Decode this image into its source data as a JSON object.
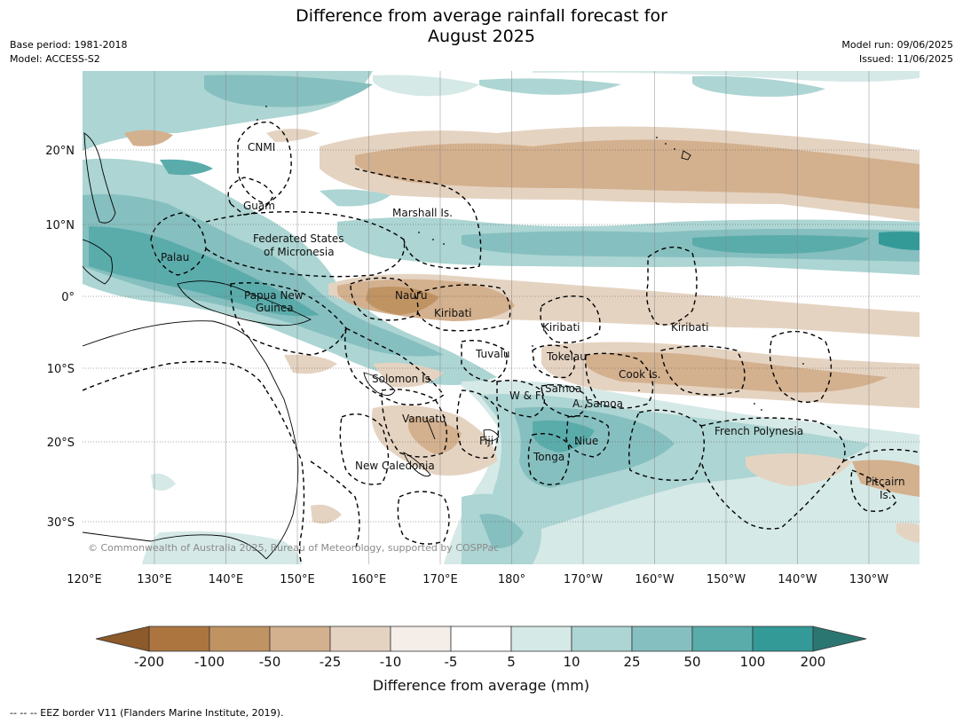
{
  "title_line1": "Difference from average rainfall forecast for",
  "title_line2": "August 2025",
  "base_period": "Base period: 1981-2018",
  "model": "Model: ACCESS-S2",
  "model_run": "Model run: 09/06/2025",
  "issued": "Issued: 11/06/2025",
  "copyright": "© Commonwealth of Australia 2025, Bureau of Meteorology, supported by COSPPac",
  "lon_ticks": [
    "120°E",
    "130°E",
    "140°E",
    "150°E",
    "160°E",
    "170°E",
    "180°",
    "170°W",
    "160°W",
    "150°W",
    "140°W",
    "130°W"
  ],
  "lat_ticks": [
    "20°N",
    "10°N",
    "0°",
    "10°S",
    "20°S",
    "30°S"
  ],
  "places": {
    "cnmi": "CNMI",
    "guam": "Guam",
    "marshall": "Marshall Is.",
    "fsm1": "Federated States",
    "fsm2": "of Micronesia",
    "palau": "Palau",
    "png1": "Papua New",
    "png2": "Guinea",
    "nauru": "Nauru",
    "kiribati_w": "Kiribati",
    "kiribati_c": "Kiribati",
    "kiribati_e": "Kiribati",
    "tuvalu": "Tuvalu",
    "tokelau": "Tokelau",
    "cook": "Cook Is.",
    "solomon": "Solomon Is.",
    "wf": "W & F",
    "samoa": "Samoa",
    "asamoa": "A. Samoa",
    "vanuatu": "Vanuatu",
    "fiji": "Fiji",
    "niue": "Niue",
    "tonga": "Tonga",
    "fp": "French Polynesia",
    "newcal": "New Caledonia",
    "pitcairn1": "Pitcairn",
    "pitcairn2": "Is."
  },
  "legend": {
    "title": "Difference from average (mm)",
    "ticks": [
      "-200",
      "-100",
      "-50",
      "-25",
      "-10",
      "-5",
      "5",
      "10",
      "25",
      "50",
      "100",
      "200"
    ],
    "colors": [
      "#8c5a2b",
      "#ac7540",
      "#c09363",
      "#d3b08e",
      "#e5d3c1",
      "#f5eee8",
      "#ffffff",
      "#d5e9e7",
      "#acd5d3",
      "#86bfbf",
      "#5aacab",
      "#339a98",
      "#2c7672"
    ]
  },
  "footnote": "--  --  -- EEZ border V11 (Flanders Marine Institute, 2019)."
}
